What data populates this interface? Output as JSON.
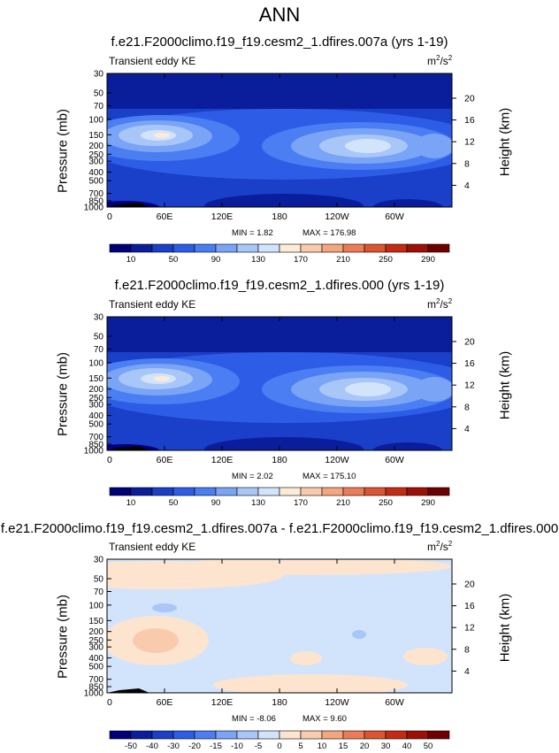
{
  "page_title": "ANN",
  "chart_data": [
    {
      "type": "heatmap",
      "title": "f.e21.F2000climo.f19_f19.cesm2_1.dfires.007a (yrs 1-19)",
      "variable": "Transient eddy KE",
      "units": "m",
      "units_exp": "2",
      "units_den": "/s",
      "units_den_exp": "2",
      "xlabel": "",
      "ylabel": "Pressure (mb)",
      "ylabel_right": "Height (km)",
      "x_ticks": [
        "0",
        "60E",
        "120E",
        "180",
        "120W",
        "60W"
      ],
      "x_tick_values": [
        0,
        60,
        120,
        180,
        240,
        300
      ],
      "xlim": [
        0,
        360
      ],
      "y_ticks": [
        "30",
        "50",
        "70",
        "100",
        "150",
        "200",
        "250",
        "300",
        "400",
        "500",
        "700",
        "850",
        "1000"
      ],
      "y_tick_values": [
        30,
        50,
        70,
        100,
        150,
        200,
        250,
        300,
        400,
        500,
        700,
        850,
        1000
      ],
      "ylim": [
        1000,
        30
      ],
      "y_scale": "log",
      "height_ticks": [
        "20",
        "16",
        "12",
        "8",
        "4"
      ],
      "height_tick_values": [
        20,
        16,
        12,
        8,
        4
      ],
      "min_label": "MIN =   1.82",
      "max_label": "MAX = 176.98",
      "colorbar": {
        "labels": [
          "10",
          "50",
          "90",
          "130",
          "170",
          "210",
          "250",
          "290"
        ],
        "colors": [
          "#000078",
          "#0a1e9c",
          "#1a3fc8",
          "#2d5de6",
          "#4a7ef2",
          "#7aa4f6",
          "#a9c6f9",
          "#d2e3fc",
          "#fdebd8",
          "#f9cbac",
          "#f4a67f",
          "#ec7c56",
          "#dd5430",
          "#c52b13",
          "#9e1006",
          "#6e0000"
        ]
      }
    },
    {
      "type": "heatmap",
      "title": "f.e21.F2000climo.f19_f19.cesm2_1.dfires.000 (yrs 1-19)",
      "variable": "Transient eddy KE",
      "units": "m",
      "units_exp": "2",
      "units_den": "/s",
      "units_den_exp": "2",
      "xlabel": "",
      "ylabel": "Pressure (mb)",
      "ylabel_right": "Height (km)",
      "x_ticks": [
        "0",
        "60E",
        "120E",
        "180",
        "120W",
        "60W"
      ],
      "x_tick_values": [
        0,
        60,
        120,
        180,
        240,
        300
      ],
      "xlim": [
        0,
        360
      ],
      "y_ticks": [
        "30",
        "50",
        "70",
        "100",
        "150",
        "200",
        "250",
        "300",
        "400",
        "500",
        "700",
        "850",
        "1000"
      ],
      "y_tick_values": [
        30,
        50,
        70,
        100,
        150,
        200,
        250,
        300,
        400,
        500,
        700,
        850,
        1000
      ],
      "ylim": [
        1000,
        30
      ],
      "y_scale": "log",
      "height_ticks": [
        "20",
        "16",
        "12",
        "8",
        "4"
      ],
      "height_tick_values": [
        20,
        16,
        12,
        8,
        4
      ],
      "min_label": "MIN =   2.02",
      "max_label": "MAX = 175.10",
      "colorbar": {
        "labels": [
          "10",
          "50",
          "90",
          "130",
          "170",
          "210",
          "250",
          "290"
        ],
        "colors": [
          "#000078",
          "#0a1e9c",
          "#1a3fc8",
          "#2d5de6",
          "#4a7ef2",
          "#7aa4f6",
          "#a9c6f9",
          "#d2e3fc",
          "#fdebd8",
          "#f9cbac",
          "#f4a67f",
          "#ec7c56",
          "#dd5430",
          "#c52b13",
          "#9e1006",
          "#6e0000"
        ]
      }
    },
    {
      "type": "heatmap",
      "title": "f.e21.F2000climo.f19_f19.cesm2_1.dfires.007a - f.e21.F2000climo.f19_f19.cesm2_1.dfires.000",
      "variable": "Transient eddy KE",
      "units": "m",
      "units_exp": "2",
      "units_den": "/s",
      "units_den_exp": "2",
      "xlabel": "",
      "ylabel": "Pressure (mb)",
      "ylabel_right": "Height (km)",
      "x_ticks": [
        "0",
        "60E",
        "120E",
        "180",
        "120W",
        "60W"
      ],
      "x_tick_values": [
        0,
        60,
        120,
        180,
        240,
        300
      ],
      "xlim": [
        0,
        360
      ],
      "y_ticks": [
        "30",
        "50",
        "70",
        "100",
        "150",
        "200",
        "250",
        "300",
        "400",
        "500",
        "700",
        "850",
        "1000"
      ],
      "y_tick_values": [
        30,
        50,
        70,
        100,
        150,
        200,
        250,
        300,
        400,
        500,
        700,
        850,
        1000
      ],
      "ylim": [
        1000,
        30
      ],
      "y_scale": "log",
      "height_ticks": [
        "20",
        "16",
        "12",
        "8",
        "4"
      ],
      "height_tick_values": [
        20,
        16,
        12,
        8,
        4
      ],
      "min_label": "MIN =  -8.06",
      "max_label": "MAX =   9.60",
      "colorbar": {
        "labels": [
          "-50",
          "-40",
          "-30",
          "-20",
          "-15",
          "-10",
          "-5",
          "0",
          "5",
          "10",
          "15",
          "20",
          "30",
          "40",
          "50"
        ],
        "colors": [
          "#000078",
          "#0a1e9c",
          "#1a3fc8",
          "#2d5de6",
          "#4a7ef2",
          "#7aa4f6",
          "#a9c6f9",
          "#d2e3fc",
          "#fde4cf",
          "#f9cbac",
          "#f4a67f",
          "#ec7c56",
          "#dd5430",
          "#c52b13",
          "#9e1006",
          "#6e0000"
        ]
      }
    }
  ]
}
